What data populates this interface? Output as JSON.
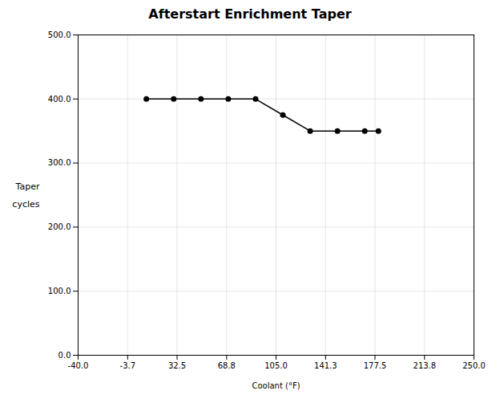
{
  "chart_data": {
    "type": "line",
    "title": "Afterstart Enrichment Taper",
    "xlabel": "Coolant (°F)",
    "ylabel": "Taper\n\ncycles",
    "x": [
      10.0,
      30.0,
      50.0,
      70.0,
      90.0,
      110.0,
      130.0,
      150.0,
      170.0,
      180.0
    ],
    "values": [
      400,
      400,
      400,
      400,
      400,
      375,
      350,
      350,
      350,
      350
    ],
    "xlim": [
      -40.0,
      250.0
    ],
    "ylim": [
      0.0,
      500.0
    ],
    "xticks": [
      {
        "value": -40.0,
        "label": "-40.0"
      },
      -3.7,
      32.5,
      68.8,
      {
        "value": 105.0,
        "label": "105.0"
      },
      141.3,
      177.5,
      213.8,
      {
        "value": 250.0,
        "label": "250.0"
      }
    ],
    "yticks": [
      {
        "value": 0.0,
        "label": "0.0"
      },
      {
        "value": 100.0,
        "label": "100.0"
      },
      {
        "value": 200.0,
        "label": "200.0"
      },
      {
        "value": 300.0,
        "label": "300.0"
      },
      {
        "value": 400.0,
        "label": "400.0"
      },
      {
        "value": 500.0,
        "label": "500.0"
      }
    ],
    "grid": true,
    "marker": "o"
  }
}
